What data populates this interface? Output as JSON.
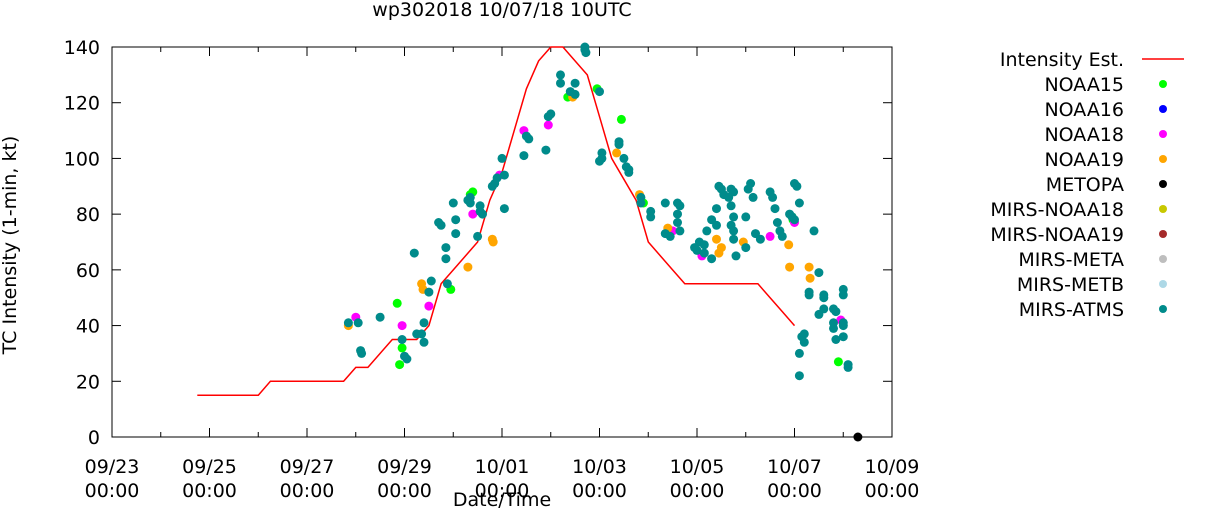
{
  "chart_data": {
    "type": "scatter",
    "title": "wp302018 10/07/18 10UTC",
    "xlabel": "Date/Time",
    "ylabel": "TC Intensity (1-min, kt)",
    "x_unit": "days since 09/23 00:00",
    "xlim": [
      0,
      16
    ],
    "ylim": [
      0,
      140
    ],
    "x_ticks": [
      {
        "value": 0,
        "date": "09/23",
        "time": "00:00"
      },
      {
        "value": 2,
        "date": "09/25",
        "time": "00:00"
      },
      {
        "value": 4,
        "date": "09/27",
        "time": "00:00"
      },
      {
        "value": 6,
        "date": "09/29",
        "time": "00:00"
      },
      {
        "value": 8,
        "date": "10/01",
        "time": "00:00"
      },
      {
        "value": 10,
        "date": "10/03",
        "time": "00:00"
      },
      {
        "value": 12,
        "date": "10/05",
        "time": "00:00"
      },
      {
        "value": 14,
        "date": "10/07",
        "time": "00:00"
      },
      {
        "value": 16,
        "date": "10/09",
        "time": "00:00"
      }
    ],
    "y_ticks": [
      0,
      20,
      40,
      60,
      80,
      100,
      120,
      140
    ],
    "legend_position": "right",
    "series": [
      {
        "name": "Intensity Est.",
        "kind": "line",
        "color": "#ff0000",
        "points": [
          [
            1.75,
            15
          ],
          [
            3.0,
            15
          ],
          [
            3.25,
            20
          ],
          [
            4.75,
            20
          ],
          [
            5.0,
            25
          ],
          [
            5.25,
            25
          ],
          [
            5.75,
            35
          ],
          [
            6.25,
            35
          ],
          [
            6.5,
            40
          ],
          [
            6.75,
            55
          ],
          [
            7.0,
            60
          ],
          [
            7.5,
            70
          ],
          [
            7.75,
            85
          ],
          [
            8.0,
            95
          ],
          [
            8.5,
            125
          ],
          [
            8.75,
            135
          ],
          [
            9.0,
            140
          ],
          [
            9.25,
            140
          ],
          [
            9.75,
            130
          ],
          [
            10.0,
            115
          ],
          [
            10.25,
            100
          ],
          [
            10.75,
            85
          ],
          [
            11.0,
            70
          ],
          [
            11.5,
            60
          ],
          [
            11.75,
            55
          ],
          [
            13.25,
            55
          ],
          [
            13.5,
            50
          ],
          [
            13.75,
            45
          ],
          [
            14.0,
            40
          ]
        ]
      },
      {
        "name": "NOAA15",
        "kind": "points",
        "color": "#00ff00",
        "points": [
          [
            5.85,
            48
          ],
          [
            5.9,
            26
          ],
          [
            5.95,
            32
          ],
          [
            6.95,
            53
          ],
          [
            7.35,
            87
          ],
          [
            7.4,
            88
          ],
          [
            9.35,
            122
          ],
          [
            9.95,
            125
          ],
          [
            10.45,
            114
          ],
          [
            10.9,
            84
          ],
          [
            13.95,
            79
          ],
          [
            13.97,
            78
          ],
          [
            14.9,
            27
          ]
        ]
      },
      {
        "name": "NOAA16",
        "kind": "points",
        "color": "#0000ff",
        "points": []
      },
      {
        "name": "NOAA18",
        "kind": "points",
        "color": "#ff00ff",
        "points": [
          [
            5.0,
            43
          ],
          [
            5.95,
            40
          ],
          [
            6.5,
            47
          ],
          [
            7.4,
            80
          ],
          [
            7.95,
            94
          ],
          [
            8.45,
            110
          ],
          [
            8.95,
            112
          ],
          [
            11.5,
            74
          ],
          [
            12.1,
            65
          ],
          [
            13.5,
            72
          ],
          [
            14.0,
            77
          ],
          [
            14.95,
            42
          ]
        ]
      },
      {
        "name": "NOAA19",
        "kind": "points",
        "color": "#ffa500",
        "points": [
          [
            4.85,
            40
          ],
          [
            6.35,
            55
          ],
          [
            6.38,
            53
          ],
          [
            7.3,
            61
          ],
          [
            7.8,
            71
          ],
          [
            7.82,
            70
          ],
          [
            9.45,
            122
          ],
          [
            10.35,
            102
          ],
          [
            10.82,
            87
          ],
          [
            11.4,
            75
          ],
          [
            12.4,
            71
          ],
          [
            12.5,
            68
          ],
          [
            12.45,
            66
          ],
          [
            12.95,
            70
          ],
          [
            13.9,
            61
          ],
          [
            13.88,
            69
          ],
          [
            14.3,
            61
          ],
          [
            14.32,
            57
          ]
        ]
      },
      {
        "name": "METOPA",
        "kind": "points",
        "color": "#000000",
        "points": [
          [
            15.3,
            0
          ]
        ]
      },
      {
        "name": "MIRS-NOAA18",
        "kind": "points",
        "color": "#c8c800",
        "points": []
      },
      {
        "name": "MIRS-NOAA19",
        "kind": "points",
        "color": "#a52a2a",
        "points": []
      },
      {
        "name": "MIRS-META",
        "kind": "points",
        "color": "#bebebe",
        "points": []
      },
      {
        "name": "MIRS-METB",
        "kind": "points",
        "color": "#add8e6",
        "points": []
      },
      {
        "name": "MIRS-ATMS",
        "kind": "points",
        "color": "#008b8b",
        "points": [
          [
            4.85,
            41
          ],
          [
            5.05,
            41
          ],
          [
            5.1,
            31
          ],
          [
            5.12,
            30
          ],
          [
            5.5,
            43
          ],
          [
            5.95,
            35
          ],
          [
            6.0,
            29
          ],
          [
            6.05,
            28
          ],
          [
            6.2,
            66
          ],
          [
            6.25,
            37
          ],
          [
            6.35,
            37
          ],
          [
            6.4,
            34
          ],
          [
            6.4,
            41
          ],
          [
            6.5,
            52
          ],
          [
            6.55,
            56
          ],
          [
            6.7,
            77
          ],
          [
            6.75,
            76
          ],
          [
            6.85,
            68
          ],
          [
            6.85,
            64
          ],
          [
            6.88,
            55
          ],
          [
            7.0,
            84
          ],
          [
            7.05,
            78
          ],
          [
            7.05,
            73
          ],
          [
            7.35,
            86
          ],
          [
            7.3,
            85
          ],
          [
            7.35,
            84
          ],
          [
            7.5,
            72
          ],
          [
            7.55,
            83
          ],
          [
            7.55,
            81
          ],
          [
            7.6,
            80
          ],
          [
            7.8,
            90
          ],
          [
            7.85,
            91
          ],
          [
            7.9,
            93
          ],
          [
            8.0,
            100
          ],
          [
            8.05,
            82
          ],
          [
            8.05,
            94
          ],
          [
            8.45,
            101
          ],
          [
            8.5,
            108
          ],
          [
            8.55,
            107
          ],
          [
            8.9,
            103
          ],
          [
            9.0,
            116
          ],
          [
            8.95,
            115
          ],
          [
            9.2,
            130
          ],
          [
            9.2,
            127
          ],
          [
            9.4,
            124
          ],
          [
            9.5,
            127
          ],
          [
            9.5,
            123
          ],
          [
            9.7,
            140
          ],
          [
            9.72,
            138
          ],
          [
            9.7,
            139
          ],
          [
            10.0,
            124
          ],
          [
            10.05,
            102
          ],
          [
            10.0,
            99
          ],
          [
            10.05,
            100
          ],
          [
            10.4,
            106
          ],
          [
            10.4,
            105
          ],
          [
            10.5,
            100
          ],
          [
            10.55,
            97
          ],
          [
            10.6,
            96
          ],
          [
            10.6,
            95
          ],
          [
            10.85,
            86
          ],
          [
            10.85,
            84
          ],
          [
            11.05,
            81
          ],
          [
            11.05,
            79
          ],
          [
            11.35,
            84
          ],
          [
            11.35,
            73
          ],
          [
            11.45,
            72
          ],
          [
            11.6,
            84
          ],
          [
            11.6,
            80
          ],
          [
            11.6,
            77
          ],
          [
            11.65,
            83
          ],
          [
            11.65,
            74
          ],
          [
            11.95,
            68
          ],
          [
            12.0,
            67
          ],
          [
            12.05,
            70
          ],
          [
            12.15,
            69
          ],
          [
            12.15,
            66
          ],
          [
            12.2,
            74
          ],
          [
            12.3,
            78
          ],
          [
            12.3,
            64
          ],
          [
            12.4,
            82
          ],
          [
            12.4,
            76
          ],
          [
            12.45,
            90
          ],
          [
            12.5,
            89
          ],
          [
            12.55,
            87
          ],
          [
            12.65,
            86
          ],
          [
            12.7,
            89
          ],
          [
            12.75,
            88
          ],
          [
            12.7,
            83
          ],
          [
            12.75,
            79
          ],
          [
            12.7,
            76
          ],
          [
            12.75,
            74
          ],
          [
            12.75,
            71
          ],
          [
            12.8,
            65
          ],
          [
            13.0,
            79
          ],
          [
            13.05,
            89
          ],
          [
            13.1,
            91
          ],
          [
            13.15,
            86
          ],
          [
            13.0,
            68
          ],
          [
            13.2,
            73
          ],
          [
            13.3,
            71
          ],
          [
            13.5,
            88
          ],
          [
            13.55,
            86
          ],
          [
            13.6,
            82
          ],
          [
            13.65,
            77
          ],
          [
            13.7,
            74
          ],
          [
            13.75,
            72
          ],
          [
            13.9,
            80
          ],
          [
            14.0,
            91
          ],
          [
            14.05,
            90
          ],
          [
            14.1,
            84
          ],
          [
            13.95,
            79
          ],
          [
            14.0,
            78
          ],
          [
            14.15,
            36
          ],
          [
            14.2,
            37
          ],
          [
            14.2,
            34
          ],
          [
            14.1,
            30
          ],
          [
            14.1,
            22
          ],
          [
            14.3,
            52
          ],
          [
            14.3,
            51
          ],
          [
            14.4,
            74
          ],
          [
            14.5,
            59
          ],
          [
            14.6,
            51
          ],
          [
            14.6,
            50
          ],
          [
            14.5,
            44
          ],
          [
            14.6,
            46
          ],
          [
            14.8,
            46
          ],
          [
            14.85,
            45
          ],
          [
            14.8,
            41
          ],
          [
            14.8,
            39
          ],
          [
            14.85,
            35
          ],
          [
            15.0,
            53
          ],
          [
            15.0,
            51
          ],
          [
            15.0,
            41
          ],
          [
            15.0,
            40
          ],
          [
            15.0,
            36
          ],
          [
            15.1,
            26
          ],
          [
            15.1,
            25
          ]
        ]
      }
    ]
  }
}
